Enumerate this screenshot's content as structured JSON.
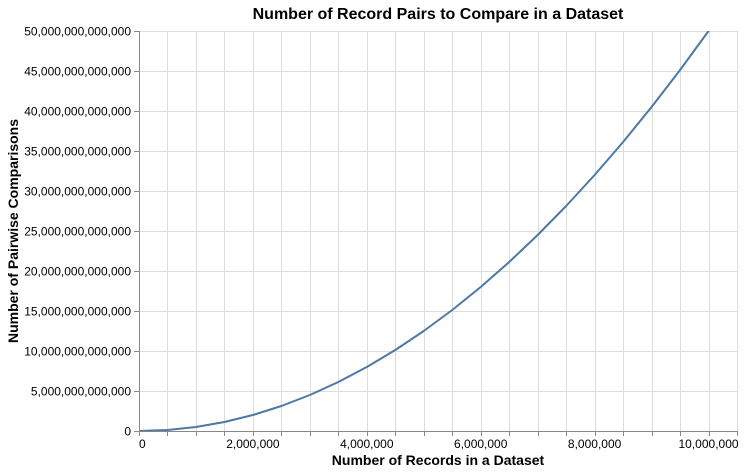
{
  "chart_data": {
    "type": "line",
    "title": "Number of Record Pairs to Compare in a Dataset",
    "xlabel": "Number of Records in a Dataset",
    "ylabel": "Number of Pairwise Comparisons",
    "xlim": [
      0,
      10500000
    ],
    "ylim": [
      0,
      50000000000000
    ],
    "x_ticks": [
      0,
      2000000,
      4000000,
      6000000,
      8000000,
      10000000
    ],
    "x_tick_labels": [
      "0",
      "2,000,000",
      "4,000,000",
      "6,000,000",
      "8,000,000",
      "10,000,000"
    ],
    "x_grid_step": 500000,
    "y_ticks": [
      0,
      5000000000000,
      10000000000000,
      15000000000000,
      20000000000000,
      25000000000000,
      30000000000000,
      35000000000000,
      40000000000000,
      45000000000000,
      50000000000000
    ],
    "y_tick_labels": [
      "0",
      "5,000,000,000,000",
      "10,000,000,000,000",
      "15,000,000,000,000",
      "20,000,000,000,000",
      "25,000,000,000,000",
      "30,000,000,000,000",
      "35,000,000,000,000",
      "40,000,000,000,000",
      "45,000,000,000,000",
      "50,000,000,000,000"
    ],
    "grid": true,
    "series": [
      {
        "color": "#4c78a8",
        "x": [
          0,
          500000,
          1000000,
          1500000,
          2000000,
          2500000,
          3000000,
          3500000,
          4000000,
          4500000,
          5000000,
          5500000,
          6000000,
          6500000,
          7000000,
          7500000,
          8000000,
          8500000,
          9000000,
          9500000,
          10000000,
          10500000
        ],
        "y": [
          0,
          124999750000,
          499999500000,
          1124999250000,
          1999999000000,
          3124998750000,
          4499998500000,
          6124998250000,
          7999998000000,
          10124997750000,
          12499997500000,
          15124997250000,
          17999997000000,
          21124996750000,
          24499996500000,
          28124996250000,
          31999996000000,
          36124995750000,
          40499995500000,
          45124995250000,
          49999995000000,
          55124994750000
        ]
      }
    ]
  }
}
